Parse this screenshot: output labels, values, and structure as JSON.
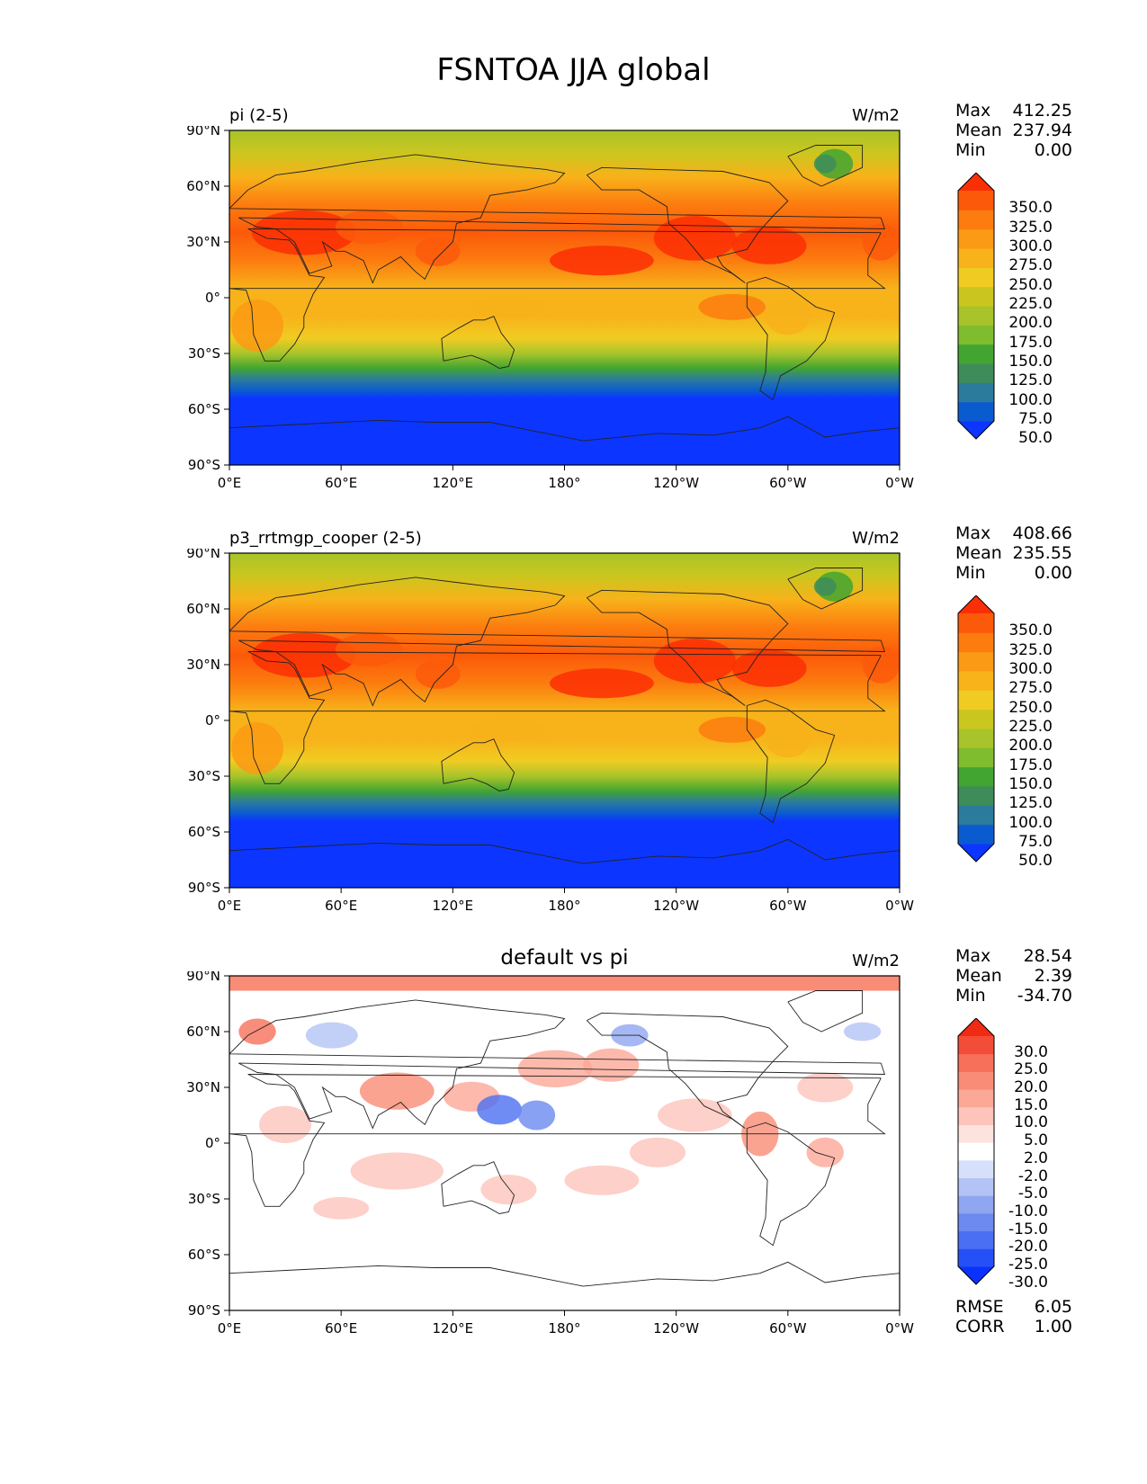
{
  "title": "FSNTOA JJA global",
  "colors": {
    "abs_levels": [
      "#0c36ff",
      "#0b5bd0",
      "#2b7b9c",
      "#3e8c5a",
      "#42a531",
      "#7fbd2e",
      "#a8c42a",
      "#cbc61f",
      "#f0cc22",
      "#f8b21a",
      "#fb9a14",
      "#fc7c0f",
      "#fc5a0a",
      "#fb2f05"
    ],
    "diff_levels": [
      "#0a32ff",
      "#2550f6",
      "#4b6ff2",
      "#6c8aef",
      "#8fa6f0",
      "#b3c3f4",
      "#d6e0fb",
      "#ffffff",
      "#fde3de",
      "#fcc4bb",
      "#fba897",
      "#f98c76",
      "#f6705a",
      "#f34c38",
      "#f12a14"
    ],
    "coast": "#222222"
  },
  "chart_data": [
    {
      "type": "heatmap",
      "name": "panel-pi",
      "title_left": "pi (2-5)",
      "units": "W/m2",
      "stats": {
        "max_label": "Max",
        "max": "412.25",
        "mean_label": "Mean",
        "mean": "237.94",
        "min_label": "Min",
        "min": "0.00"
      },
      "colorbar_labels": [
        "350.0",
        "325.0",
        "300.0",
        "275.0",
        "250.0",
        "225.0",
        "200.0",
        "175.0",
        "150.0",
        "125.0",
        "100.0",
        "75.0",
        "50.0"
      ],
      "xticks": [
        "0°E",
        "60°E",
        "120°E",
        "180°",
        "120°W",
        "60°W",
        "0°W"
      ],
      "yticks": [
        "90°N",
        "60°N",
        "30°N",
        "0°",
        "30°S",
        "60°S",
        "90°S"
      ],
      "xlim": [
        0,
        360
      ],
      "ylim": [
        -90,
        90
      ]
    },
    {
      "type": "heatmap",
      "name": "panel-p3",
      "title_left": "p3_rrtmgp_cooper (2-5)",
      "units": "W/m2",
      "stats": {
        "max_label": "Max",
        "max": "408.66",
        "mean_label": "Mean",
        "mean": "235.55",
        "min_label": "Min",
        "min": "0.00"
      },
      "colorbar_labels": [
        "350.0",
        "325.0",
        "300.0",
        "275.0",
        "250.0",
        "225.0",
        "200.0",
        "175.0",
        "150.0",
        "125.0",
        "100.0",
        "75.0",
        "50.0"
      ],
      "xticks": [
        "0°E",
        "60°E",
        "120°E",
        "180°",
        "120°W",
        "60°W",
        "0°W"
      ],
      "yticks": [
        "90°N",
        "60°N",
        "30°N",
        "0°",
        "30°S",
        "60°S",
        "90°S"
      ],
      "xlim": [
        0,
        360
      ],
      "ylim": [
        -90,
        90
      ]
    },
    {
      "type": "heatmap",
      "name": "panel-diff",
      "title_center": "default vs pi",
      "units": "W/m2",
      "stats": {
        "max_label": "Max",
        "max": "28.54",
        "mean_label": "Mean",
        "mean": "2.39",
        "min_label": "Min",
        "min": "-34.70"
      },
      "colorbar_labels": [
        "30.0",
        "25.0",
        "20.0",
        "15.0",
        "10.0",
        "5.0",
        "2.0",
        "-2.0",
        "-5.0",
        "-10.0",
        "-15.0",
        "-20.0",
        "-25.0",
        "-30.0"
      ],
      "metrics": {
        "rmse_label": "RMSE",
        "rmse": "6.05",
        "corr_label": "CORR",
        "corr": "1.00"
      },
      "xticks": [
        "0°E",
        "60°E",
        "120°E",
        "180°",
        "120°W",
        "60°W",
        "0°W"
      ],
      "yticks": [
        "90°N",
        "60°N",
        "30°N",
        "0°",
        "30°S",
        "60°S",
        "90°S"
      ],
      "xlim": [
        0,
        360
      ],
      "ylim": [
        -90,
        90
      ]
    }
  ]
}
